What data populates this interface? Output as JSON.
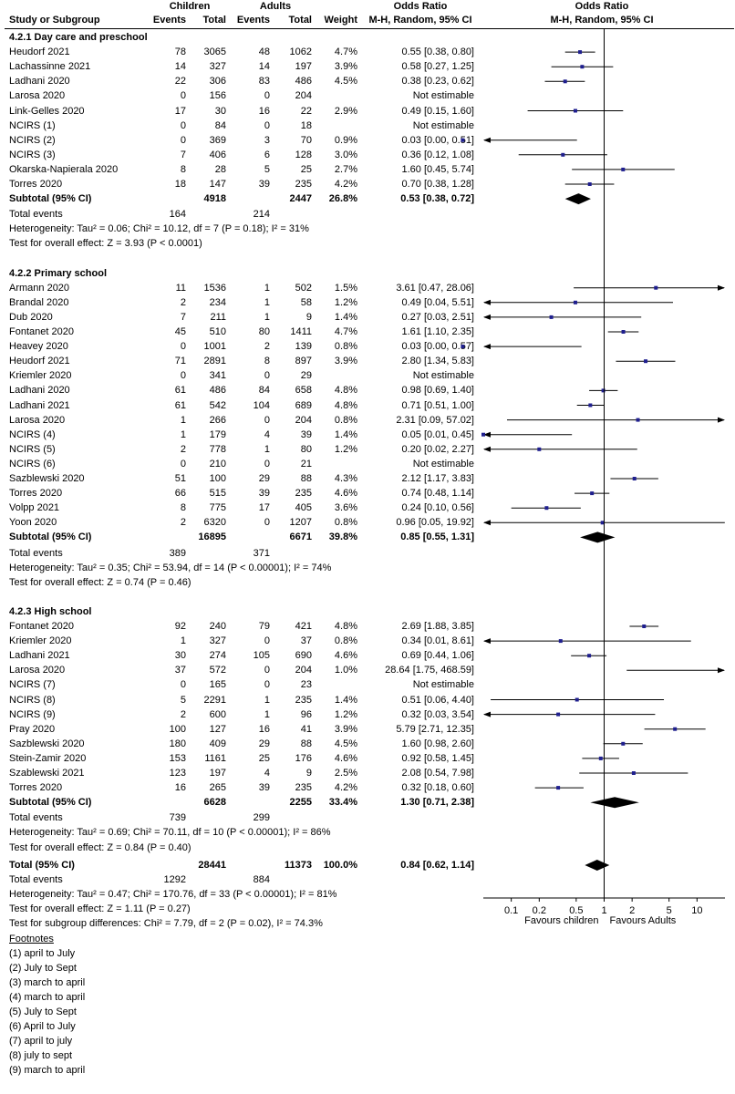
{
  "header": {
    "children": "Children",
    "adults": "Adults",
    "or_title_left": "Odds Ratio",
    "or_title_right": "Odds Ratio",
    "study_col": "Study or Subgroup",
    "events": "Events",
    "total": "Total",
    "weight": "Weight",
    "method_left": "M-H, Random, 95% CI",
    "method_right": "M-H, Random, 95% CI"
  },
  "chart_data": {
    "type": "forest",
    "scale": "log",
    "xlim": [
      0.05,
      20
    ],
    "null_value": 1,
    "ticks": [
      {
        "v": 0.1,
        "label": "0.1"
      },
      {
        "v": 0.2,
        "label": "0.2"
      },
      {
        "v": 0.5,
        "label": "0.5"
      },
      {
        "v": 1,
        "label": "1"
      },
      {
        "v": 2,
        "label": "2"
      },
      {
        "v": 5,
        "label": "5"
      },
      {
        "v": 10,
        "label": "10"
      }
    ],
    "favours_left": "Favours children",
    "favours_right": "Favours Adults",
    "groups": [
      {
        "title": "4.2.1 Day care and preschool",
        "studies": [
          {
            "name": "Heudorf 2021",
            "e1": "78",
            "n1": "3065",
            "e2": "48",
            "n2": "1062",
            "w": "4.7%",
            "ci": "0.55 [0.38, 0.80]",
            "or": 0.55,
            "lo": 0.38,
            "hi": 0.8
          },
          {
            "name": "Lachassinne 2021",
            "e1": "14",
            "n1": "327",
            "e2": "14",
            "n2": "197",
            "w": "3.9%",
            "ci": "0.58 [0.27, 1.25]",
            "or": 0.58,
            "lo": 0.27,
            "hi": 1.25
          },
          {
            "name": "Ladhani 2020",
            "e1": "22",
            "n1": "306",
            "e2": "83",
            "n2": "486",
            "w": "4.5%",
            "ci": "0.38 [0.23, 0.62]",
            "or": 0.38,
            "lo": 0.23,
            "hi": 0.62
          },
          {
            "name": "Larosa 2020",
            "e1": "0",
            "n1": "156",
            "e2": "0",
            "n2": "204",
            "w": "",
            "ci": "Not estimable",
            "or": null,
            "lo": null,
            "hi": null
          },
          {
            "name": "Link-Gelles 2020",
            "e1": "17",
            "n1": "30",
            "e2": "16",
            "n2": "22",
            "w": "2.9%",
            "ci": "0.49 [0.15, 1.60]",
            "or": 0.49,
            "lo": 0.15,
            "hi": 1.6
          },
          {
            "name": "NCIRS (1)",
            "e1": "0",
            "n1": "84",
            "e2": "0",
            "n2": "18",
            "w": "",
            "ci": "Not estimable",
            "or": null,
            "lo": null,
            "hi": null
          },
          {
            "name": "NCIRS (2)",
            "e1": "0",
            "n1": "369",
            "e2": "3",
            "n2": "70",
            "w": "0.9%",
            "ci": "0.03 [0.00, 0.51]",
            "or": 0.03,
            "lo": 0.0,
            "hi": 0.51
          },
          {
            "name": "NCIRS (3)",
            "e1": "7",
            "n1": "406",
            "e2": "6",
            "n2": "128",
            "w": "3.0%",
            "ci": "0.36 [0.12, 1.08]",
            "or": 0.36,
            "lo": 0.12,
            "hi": 1.08
          },
          {
            "name": "Okarska-Napierala 2020",
            "e1": "8",
            "n1": "28",
            "e2": "5",
            "n2": "25",
            "w": "2.7%",
            "ci": "1.60 [0.45, 5.74]",
            "or": 1.6,
            "lo": 0.45,
            "hi": 5.74
          },
          {
            "name": "Torres 2020",
            "e1": "18",
            "n1": "147",
            "e2": "39",
            "n2": "235",
            "w": "4.2%",
            "ci": "0.70 [0.38, 1.28]",
            "or": 0.7,
            "lo": 0.38,
            "hi": 1.28
          }
        ],
        "subtotal": {
          "label": "Subtotal (95% CI)",
          "n1": "4918",
          "n2": "2447",
          "w": "26.8%",
          "ci": "0.53 [0.38, 0.72]",
          "or": 0.53,
          "lo": 0.38,
          "hi": 0.72
        },
        "total_events": {
          "label": "Total events",
          "e1": "164",
          "e2": "214"
        },
        "heterogeneity": "Heterogeneity: Tau² = 0.06; Chi² = 10.12, df = 7 (P = 0.18); I² = 31%",
        "overall": "Test for overall effect: Z = 3.93 (P < 0.0001)"
      },
      {
        "title": "4.2.2 Primary school",
        "studies": [
          {
            "name": "Armann 2020",
            "e1": "11",
            "n1": "1536",
            "e2": "1",
            "n2": "502",
            "w": "1.5%",
            "ci": "3.61 [0.47, 28.06]",
            "or": 3.61,
            "lo": 0.47,
            "hi": 28.06
          },
          {
            "name": "Brandal 2020",
            "e1": "2",
            "n1": "234",
            "e2": "1",
            "n2": "58",
            "w": "1.2%",
            "ci": "0.49 [0.04, 5.51]",
            "or": 0.49,
            "lo": 0.04,
            "hi": 5.51
          },
          {
            "name": "Dub 2020",
            "e1": "7",
            "n1": "211",
            "e2": "1",
            "n2": "9",
            "w": "1.4%",
            "ci": "0.27 [0.03, 2.51]",
            "or": 0.27,
            "lo": 0.03,
            "hi": 2.51
          },
          {
            "name": "Fontanet 2020",
            "e1": "45",
            "n1": "510",
            "e2": "80",
            "n2": "1411",
            "w": "4.7%",
            "ci": "1.61 [1.10, 2.35]",
            "or": 1.61,
            "lo": 1.1,
            "hi": 2.35
          },
          {
            "name": "Heavey 2020",
            "e1": "0",
            "n1": "1001",
            "e2": "2",
            "n2": "139",
            "w": "0.8%",
            "ci": "0.03 [0.00, 0.57]",
            "or": 0.03,
            "lo": 0.0,
            "hi": 0.57
          },
          {
            "name": "Heudorf 2021",
            "e1": "71",
            "n1": "2891",
            "e2": "8",
            "n2": "897",
            "w": "3.9%",
            "ci": "2.80 [1.34, 5.83]",
            "or": 2.8,
            "lo": 1.34,
            "hi": 5.83
          },
          {
            "name": "Kriemler 2020",
            "e1": "0",
            "n1": "341",
            "e2": "0",
            "n2": "29",
            "w": "",
            "ci": "Not estimable",
            "or": null,
            "lo": null,
            "hi": null
          },
          {
            "name": "Ladhani 2020",
            "e1": "61",
            "n1": "486",
            "e2": "84",
            "n2": "658",
            "w": "4.8%",
            "ci": "0.98 [0.69, 1.40]",
            "or": 0.98,
            "lo": 0.69,
            "hi": 1.4
          },
          {
            "name": "Ladhani 2021",
            "e1": "61",
            "n1": "542",
            "e2": "104",
            "n2": "689",
            "w": "4.8%",
            "ci": "0.71 [0.51, 1.00]",
            "or": 0.71,
            "lo": 0.51,
            "hi": 1.0
          },
          {
            "name": "Larosa 2020",
            "e1": "1",
            "n1": "266",
            "e2": "0",
            "n2": "204",
            "w": "0.8%",
            "ci": "2.31 [0.09, 57.02]",
            "or": 2.31,
            "lo": 0.09,
            "hi": 57.02
          },
          {
            "name": "NCIRS (4)",
            "e1": "1",
            "n1": "179",
            "e2": "4",
            "n2": "39",
            "w": "1.4%",
            "ci": "0.05 [0.01, 0.45]",
            "or": 0.05,
            "lo": 0.01,
            "hi": 0.45
          },
          {
            "name": "NCIRS (5)",
            "e1": "2",
            "n1": "778",
            "e2": "1",
            "n2": "80",
            "w": "1.2%",
            "ci": "0.20 [0.02, 2.27]",
            "or": 0.2,
            "lo": 0.02,
            "hi": 2.27
          },
          {
            "name": "NCIRS (6)",
            "e1": "0",
            "n1": "210",
            "e2": "0",
            "n2": "21",
            "w": "",
            "ci": "Not estimable",
            "or": null,
            "lo": null,
            "hi": null
          },
          {
            "name": "Sazblewski 2020",
            "e1": "51",
            "n1": "100",
            "e2": "29",
            "n2": "88",
            "w": "4.3%",
            "ci": "2.12 [1.17, 3.83]",
            "or": 2.12,
            "lo": 1.17,
            "hi": 3.83
          },
          {
            "name": "Torres 2020",
            "e1": "66",
            "n1": "515",
            "e2": "39",
            "n2": "235",
            "w": "4.6%",
            "ci": "0.74 [0.48, 1.14]",
            "or": 0.74,
            "lo": 0.48,
            "hi": 1.14
          },
          {
            "name": "Volpp 2021",
            "e1": "8",
            "n1": "775",
            "e2": "17",
            "n2": "405",
            "w": "3.6%",
            "ci": "0.24 [0.10, 0.56]",
            "or": 0.24,
            "lo": 0.1,
            "hi": 0.56
          },
          {
            "name": "Yoon 2020",
            "e1": "2",
            "n1": "6320",
            "e2": "0",
            "n2": "1207",
            "w": "0.8%",
            "ci": "0.96 [0.05, 19.92]",
            "or": 0.96,
            "lo": 0.05,
            "hi": 19.92
          }
        ],
        "subtotal": {
          "label": "Subtotal (95% CI)",
          "n1": "16895",
          "n2": "6671",
          "w": "39.8%",
          "ci": "0.85 [0.55, 1.31]",
          "or": 0.85,
          "lo": 0.55,
          "hi": 1.31
        },
        "total_events": {
          "label": "Total events",
          "e1": "389",
          "e2": "371"
        },
        "heterogeneity": "Heterogeneity: Tau² = 0.35; Chi² = 53.94, df = 14 (P < 0.00001); I² = 74%",
        "overall": "Test for overall effect: Z = 0.74 (P = 0.46)"
      },
      {
        "title": "4.2.3 High school",
        "studies": [
          {
            "name": "Fontanet 2020",
            "e1": "92",
            "n1": "240",
            "e2": "79",
            "n2": "421",
            "w": "4.8%",
            "ci": "2.69 [1.88, 3.85]",
            "or": 2.69,
            "lo": 1.88,
            "hi": 3.85
          },
          {
            "name": "Kriemler 2020",
            "e1": "1",
            "n1": "327",
            "e2": "0",
            "n2": "37",
            "w": "0.8%",
            "ci": "0.34 [0.01, 8.61]",
            "or": 0.34,
            "lo": 0.01,
            "hi": 8.61
          },
          {
            "name": "Ladhani 2021",
            "e1": "30",
            "n1": "274",
            "e2": "105",
            "n2": "690",
            "w": "4.6%",
            "ci": "0.69 [0.44, 1.06]",
            "or": 0.69,
            "lo": 0.44,
            "hi": 1.06
          },
          {
            "name": "Larosa 2020",
            "e1": "37",
            "n1": "572",
            "e2": "0",
            "n2": "204",
            "w": "1.0%",
            "ci": "28.64 [1.75, 468.59]",
            "or": 28.64,
            "lo": 1.75,
            "hi": 468.59
          },
          {
            "name": "NCIRS (7)",
            "e1": "0",
            "n1": "165",
            "e2": "0",
            "n2": "23",
            "w": "",
            "ci": "Not estimable",
            "or": null,
            "lo": null,
            "hi": null
          },
          {
            "name": "NCIRS (8)",
            "e1": "5",
            "n1": "2291",
            "e2": "1",
            "n2": "235",
            "w": "1.4%",
            "ci": "0.51 [0.06, 4.40]",
            "or": 0.51,
            "lo": 0.06,
            "hi": 4.4
          },
          {
            "name": "NCIRS (9)",
            "e1": "2",
            "n1": "600",
            "e2": "1",
            "n2": "96",
            "w": "1.2%",
            "ci": "0.32 [0.03, 3.54]",
            "or": 0.32,
            "lo": 0.03,
            "hi": 3.54
          },
          {
            "name": "Pray 2020",
            "e1": "100",
            "n1": "127",
            "e2": "16",
            "n2": "41",
            "w": "3.9%",
            "ci": "5.79 [2.71, 12.35]",
            "or": 5.79,
            "lo": 2.71,
            "hi": 12.35
          },
          {
            "name": "Sazblewski 2020",
            "e1": "180",
            "n1": "409",
            "e2": "29",
            "n2": "88",
            "w": "4.5%",
            "ci": "1.60 [0.98, 2.60]",
            "or": 1.6,
            "lo": 0.98,
            "hi": 2.6
          },
          {
            "name": "Stein-Zamir 2020",
            "e1": "153",
            "n1": "1161",
            "e2": "25",
            "n2": "176",
            "w": "4.6%",
            "ci": "0.92 [0.58, 1.45]",
            "or": 0.92,
            "lo": 0.58,
            "hi": 1.45
          },
          {
            "name": "Szablewski 2021",
            "e1": "123",
            "n1": "197",
            "e2": "4",
            "n2": "9",
            "w": "2.5%",
            "ci": "2.08 [0.54, 7.98]",
            "or": 2.08,
            "lo": 0.54,
            "hi": 7.98
          },
          {
            "name": "Torres 2020",
            "e1": "16",
            "n1": "265",
            "e2": "39",
            "n2": "235",
            "w": "4.2%",
            "ci": "0.32 [0.18, 0.60]",
            "or": 0.32,
            "lo": 0.18,
            "hi": 0.6
          }
        ],
        "subtotal": {
          "label": "Subtotal (95% CI)",
          "n1": "6628",
          "n2": "2255",
          "w": "33.4%",
          "ci": "1.30 [0.71, 2.38]",
          "or": 1.3,
          "lo": 0.71,
          "hi": 2.38
        },
        "total_events": {
          "label": "Total events",
          "e1": "739",
          "e2": "299"
        },
        "heterogeneity": "Heterogeneity: Tau² = 0.69; Chi² = 70.11, df = 10 (P < 0.00001); I² = 86%",
        "overall": "Test for overall effect: Z = 0.84 (P = 0.40)"
      }
    ],
    "total": {
      "label": "Total (95% CI)",
      "n1": "28441",
      "n2": "11373",
      "w": "100.0%",
      "ci": "0.84 [0.62, 1.14]",
      "or": 0.84,
      "lo": 0.62,
      "hi": 1.14
    },
    "total_events": {
      "label": "Total events",
      "e1": "1292",
      "e2": "884"
    },
    "heterogeneity": "Heterogeneity: Tau² = 0.47; Chi² = 170.76, df = 33 (P < 0.00001); I² = 81%",
    "overall": "Test for overall effect: Z = 1.11 (P = 0.27)",
    "subgroup_diff": "Test for subgroup differences: Chi² = 7.79, df = 2 (P = 0.02), I² = 74.3%"
  },
  "footnotes": {
    "title": "Footnotes",
    "items": [
      "(1) april to July",
      "(2) July to Sept",
      "(3) march to april",
      "(4) march to april",
      "(5) July to Sept",
      "(6) April to July",
      "(7) april to july",
      "(8) july to sept",
      "(9) march to april"
    ]
  }
}
